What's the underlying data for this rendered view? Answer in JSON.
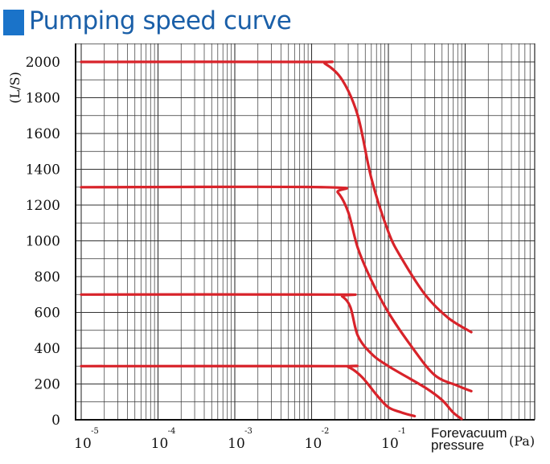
{
  "title": "Pumping speed curve",
  "colors": {
    "title": "#1a5fa8",
    "title_square": "#1a73c9",
    "curve": "#d8232a",
    "grid": "#333333"
  },
  "chart_data": {
    "type": "line",
    "x_scale": "log",
    "xlim": [
      1e-05,
      1000
    ],
    "ylim": [
      0,
      2000
    ],
    "grid": true,
    "ylabel": "(L/S)",
    "xlabel_line1": "Forevacuum",
    "xlabel_line2": "pressure",
    "xunit": "(Pa)",
    "yticks": [
      0,
      200,
      400,
      600,
      800,
      1000,
      1200,
      1400,
      1600,
      1800,
      2000
    ],
    "xticks": [
      {
        "base": "10",
        "exp": "-5"
      },
      {
        "base": "10",
        "exp": "-4"
      },
      {
        "base": "10",
        "exp": "-3"
      },
      {
        "base": "10",
        "exp": "-2"
      },
      {
        "base": "10",
        "exp": "-1"
      }
    ],
    "series": [
      {
        "points": [
          [
            1e-05,
            2000
          ],
          [
            0.01,
            2000
          ],
          [
            0.015,
            1990
          ],
          [
            0.025,
            1900
          ],
          [
            0.04,
            1700
          ],
          [
            0.06,
            1350
          ],
          [
            0.1,
            1050
          ],
          [
            0.15,
            900
          ],
          [
            0.3,
            700
          ],
          [
            0.6,
            570
          ],
          [
            1.2,
            490
          ]
        ]
      },
      {
        "points": [
          [
            1e-05,
            1300
          ],
          [
            0.015,
            1300
          ],
          [
            0.022,
            1270
          ],
          [
            0.03,
            1160
          ],
          [
            0.04,
            960
          ],
          [
            0.06,
            780
          ],
          [
            0.1,
            600
          ],
          [
            0.2,
            410
          ],
          [
            0.4,
            250
          ],
          [
            0.8,
            190
          ],
          [
            1.2,
            160
          ]
        ]
      },
      {
        "points": [
          [
            1e-05,
            700
          ],
          [
            0.02,
            700
          ],
          [
            0.025,
            690
          ],
          [
            0.032,
            630
          ],
          [
            0.04,
            470
          ],
          [
            0.06,
            370
          ],
          [
            0.1,
            300
          ],
          [
            0.3,
            180
          ],
          [
            0.5,
            110
          ],
          [
            0.7,
            40
          ],
          [
            0.9,
            5
          ]
        ]
      },
      {
        "points": [
          [
            1e-05,
            300
          ],
          [
            0.02,
            300
          ],
          [
            0.03,
            295
          ],
          [
            0.045,
            240
          ],
          [
            0.07,
            140
          ],
          [
            0.1,
            70
          ],
          [
            0.15,
            40
          ],
          [
            0.22,
            20
          ]
        ]
      }
    ]
  }
}
